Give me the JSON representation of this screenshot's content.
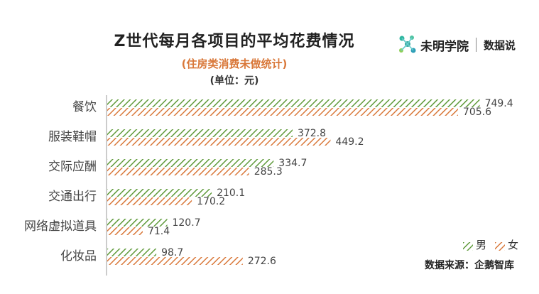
{
  "title": "Z世代每月各项目的平均花费情况",
  "subtitle": "(住房类消费未做统计)",
  "unit": "(单位：元)",
  "brand": {
    "name": "未明学院",
    "sub": "数据说"
  },
  "source": "数据来源：企鹅智库",
  "colors": {
    "male": "#5f9a3a",
    "female": "#d9783a",
    "axis": "#999999",
    "text": "#444444"
  },
  "chart_data": {
    "type": "bar",
    "orientation": "horizontal",
    "categories": [
      "餐饮",
      "服装鞋帽",
      "交际应酬",
      "交通出行",
      "网络虚拟道具",
      "化妆品"
    ],
    "series": [
      {
        "name": "男",
        "values": [
          749.4,
          372.8,
          334.7,
          210.1,
          120.7,
          98.7
        ],
        "pattern": "hatched-green"
      },
      {
        "name": "女",
        "values": [
          705.6,
          449.2,
          285.3,
          170.2,
          71.4,
          272.6
        ],
        "pattern": "hatched-orange"
      }
    ],
    "xlim": [
      0,
      800
    ],
    "legend_position": "bottom-right",
    "grid": false
  }
}
